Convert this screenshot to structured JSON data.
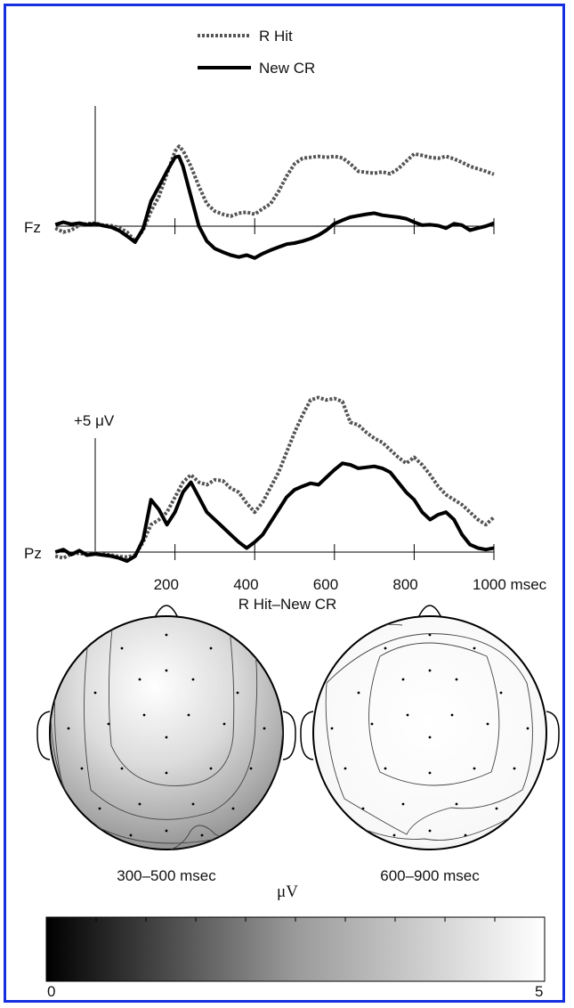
{
  "chart_data": [
    {
      "type": "line",
      "channel": "Fz",
      "x_unit": "msec",
      "xlim": [
        -100,
        1000
      ],
      "x_ticks": [
        200,
        400,
        600,
        800,
        1000
      ],
      "legend": [
        "R Hit",
        "New CR"
      ],
      "series": [
        {
          "name": "R Hit",
          "x": [
            -100,
            -80,
            -60,
            -40,
            -20,
            0,
            20,
            40,
            60,
            80,
            100,
            120,
            140,
            160,
            180,
            200,
            210,
            220,
            240,
            260,
            280,
            300,
            320,
            340,
            360,
            380,
            400,
            420,
            440,
            460,
            480,
            500,
            520,
            540,
            560,
            580,
            600,
            620,
            640,
            660,
            680,
            700,
            720,
            740,
            760,
            780,
            800,
            820,
            840,
            860,
            880,
            900,
            920,
            940,
            960,
            980,
            1000
          ],
          "y": [
            -0.4,
            -1.2,
            -0.8,
            0.2,
            0.5,
            0.6,
            0.2,
            0.1,
            -0.3,
            -1.2,
            -3.0,
            -0.8,
            3.0,
            6.0,
            10.5,
            15.0,
            16.0,
            15.2,
            12.0,
            8.0,
            4.5,
            3.0,
            2.4,
            2.0,
            2.6,
            2.8,
            2.4,
            3.5,
            4.5,
            7.0,
            10.0,
            12.5,
            13.6,
            13.8,
            14.0,
            13.8,
            14.0,
            13.7,
            12.5,
            11.0,
            10.8,
            10.6,
            10.9,
            10.5,
            11.5,
            13.0,
            14.5,
            14.2,
            13.8,
            13.6,
            14.0,
            13.5,
            12.8,
            12.0,
            11.5,
            11.0,
            10.4
          ]
        },
        {
          "name": "New CR",
          "x": [
            -100,
            -80,
            -60,
            -40,
            -20,
            0,
            20,
            40,
            60,
            80,
            100,
            120,
            140,
            160,
            180,
            200,
            210,
            220,
            240,
            260,
            280,
            300,
            320,
            340,
            360,
            380,
            400,
            420,
            440,
            460,
            480,
            500,
            520,
            540,
            560,
            580,
            600,
            620,
            640,
            660,
            680,
            700,
            720,
            740,
            760,
            780,
            800,
            820,
            840,
            860,
            880,
            900,
            920,
            940,
            960,
            980,
            1000
          ],
          "y": [
            0.3,
            0.8,
            0.4,
            0.6,
            0.3,
            0.5,
            0.1,
            -0.2,
            -0.9,
            -2.0,
            -3.2,
            -0.5,
            5.0,
            8.0,
            11.0,
            13.8,
            14.0,
            12.0,
            6.0,
            0.0,
            -3.0,
            -4.5,
            -5.2,
            -5.8,
            -6.2,
            -5.8,
            -6.4,
            -5.5,
            -4.8,
            -4.2,
            -3.6,
            -3.4,
            -3.0,
            -2.5,
            -1.8,
            -0.8,
            0.5,
            1.2,
            1.8,
            2.1,
            2.4,
            2.6,
            2.2,
            2.0,
            1.8,
            1.5,
            0.8,
            0.2,
            0.3,
            0.1,
            -0.4,
            0.5,
            0.2,
            -0.8,
            -0.4,
            0.0,
            0.6
          ]
        }
      ]
    },
    {
      "type": "line",
      "channel": "Pz",
      "x_unit": "msec",
      "xlim": [
        -100,
        1000
      ],
      "x_ticks": [
        200,
        400,
        600,
        800,
        1000
      ],
      "x_tick_labels": [
        "200",
        "400",
        "600",
        "800",
        "1000 msec"
      ],
      "scale_bar": "+5 μV",
      "series": [
        {
          "name": "R Hit",
          "x": [
            -100,
            -80,
            -60,
            -40,
            -20,
            0,
            20,
            40,
            60,
            80,
            100,
            120,
            140,
            160,
            180,
            200,
            210,
            220,
            240,
            260,
            280,
            300,
            320,
            340,
            360,
            380,
            400,
            420,
            440,
            460,
            480,
            500,
            520,
            540,
            560,
            580,
            600,
            620,
            640,
            660,
            680,
            700,
            720,
            740,
            760,
            780,
            800,
            820,
            840,
            860,
            880,
            900,
            920,
            940,
            960,
            980,
            1000
          ],
          "y": [
            -0.8,
            -1.2,
            -0.4,
            -0.2,
            -0.6,
            -0.2,
            -0.4,
            -0.6,
            -0.9,
            -1.0,
            -0.6,
            2.0,
            5.5,
            6.5,
            8.0,
            11.0,
            12.5,
            14.0,
            15.5,
            14.0,
            13.5,
            14.5,
            14.3,
            12.8,
            12.0,
            9.8,
            8.0,
            10.0,
            13.0,
            16.0,
            20.0,
            24.0,
            27.5,
            30.5,
            31.0,
            30.5,
            30.8,
            30.2,
            26.0,
            25.5,
            24.0,
            22.8,
            22.0,
            20.5,
            19.0,
            17.8,
            19.0,
            17.5,
            15.5,
            13.2,
            11.5,
            10.5,
            9.5,
            8.0,
            6.5,
            5.5,
            7.0
          ]
        },
        {
          "name": "New CR",
          "x": [
            -100,
            -80,
            -60,
            -40,
            -20,
            0,
            20,
            40,
            60,
            80,
            100,
            120,
            140,
            160,
            180,
            200,
            210,
            220,
            240,
            260,
            280,
            300,
            320,
            340,
            360,
            380,
            400,
            420,
            440,
            460,
            480,
            500,
            520,
            540,
            560,
            580,
            600,
            620,
            640,
            660,
            680,
            700,
            720,
            740,
            760,
            780,
            800,
            820,
            840,
            860,
            880,
            900,
            920,
            940,
            960,
            980,
            1000
          ],
          "y": [
            0.0,
            0.5,
            -0.5,
            0.3,
            -0.6,
            -0.4,
            -0.6,
            -0.8,
            -1.2,
            -1.8,
            -0.8,
            2.5,
            10.5,
            8.5,
            5.5,
            8.0,
            10.0,
            12.0,
            14.0,
            11.0,
            8.0,
            6.5,
            5.0,
            3.5,
            2.0,
            0.8,
            2.0,
            3.5,
            6.0,
            8.5,
            11.0,
            12.5,
            13.2,
            13.8,
            13.5,
            15.0,
            16.5,
            17.8,
            17.5,
            16.8,
            17.0,
            17.2,
            16.8,
            16.0,
            14.0,
            12.0,
            10.5,
            8.0,
            6.5,
            7.5,
            8.0,
            6.5,
            3.5,
            1.5,
            0.8,
            0.5,
            0.8
          ]
        }
      ]
    },
    {
      "type": "heatmap",
      "title": "R Hit–New CR",
      "maps": [
        {
          "label": "300–500 msec"
        },
        {
          "label": "600–900 msec"
        }
      ],
      "colorbar": {
        "label": "μV",
        "min_label": "0",
        "max_label": "5",
        "range": [
          0,
          5
        ]
      }
    }
  ]
}
